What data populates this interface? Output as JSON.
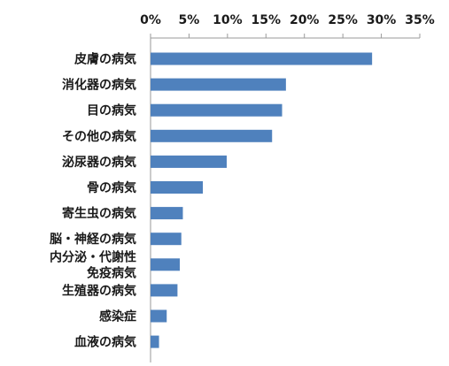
{
  "chart_data": {
    "type": "bar",
    "orientation": "horizontal",
    "title": "",
    "xlabel": "",
    "ylabel": "",
    "xlim": [
      0,
      35
    ],
    "x_ticks": [
      "0%",
      "5%",
      "10%",
      "15%",
      "20%",
      "25%",
      "30%",
      "35%"
    ],
    "x_tick_values": [
      0,
      5,
      10,
      15,
      20,
      25,
      30,
      35
    ],
    "x_axis_position": "top",
    "grid": false,
    "legend": "none",
    "bar_color": "#4f81bd",
    "categories": [
      "皮膚の病気",
      "消化器の病気",
      "目の病気",
      "その他の病気",
      "泌尿器の病気",
      "骨の病気",
      "寄生虫の病気",
      "脳・神経の病気",
      "内分泌・代謝性\n免疫病気",
      "生殖器の病気",
      "感染症",
      "血液の病気"
    ],
    "values": [
      28.8,
      17.6,
      17.1,
      15.8,
      9.9,
      6.8,
      4.2,
      4.0,
      3.8,
      3.5,
      2.1,
      1.1
    ]
  }
}
